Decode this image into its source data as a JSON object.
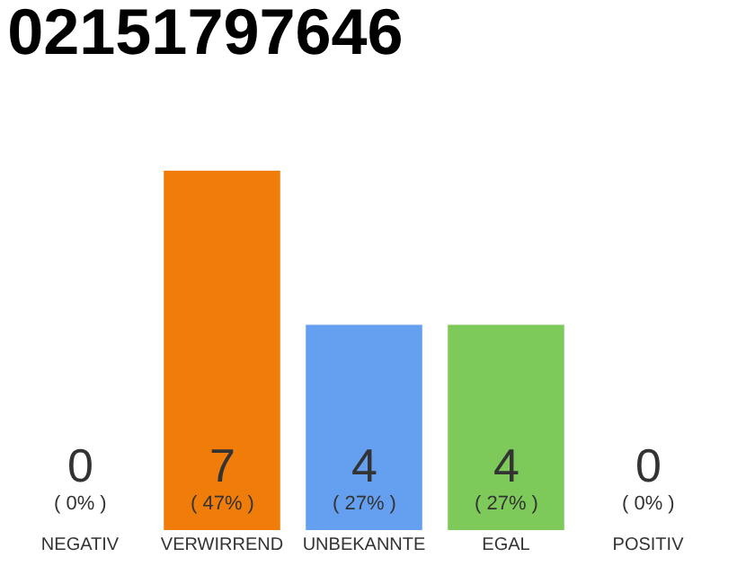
{
  "chart_data": {
    "type": "bar",
    "title": "02151797646",
    "categories": [
      "NEGATIV",
      "VERWIRREND",
      "UNBEKANNTE",
      "EGAL",
      "POSITIV"
    ],
    "values": [
      0,
      7,
      4,
      4,
      0
    ],
    "colors": [
      "#efefef",
      "#f07d0a",
      "#659ff0",
      "#7dca5b",
      "#efefef"
    ],
    "value_labels": [
      "0\n( 0% )",
      "7\n( 47% )",
      "4\n( 27% )",
      "4\n( 27% )",
      "0\n( 0% )"
    ],
    "ylim": [
      0,
      7
    ]
  }
}
